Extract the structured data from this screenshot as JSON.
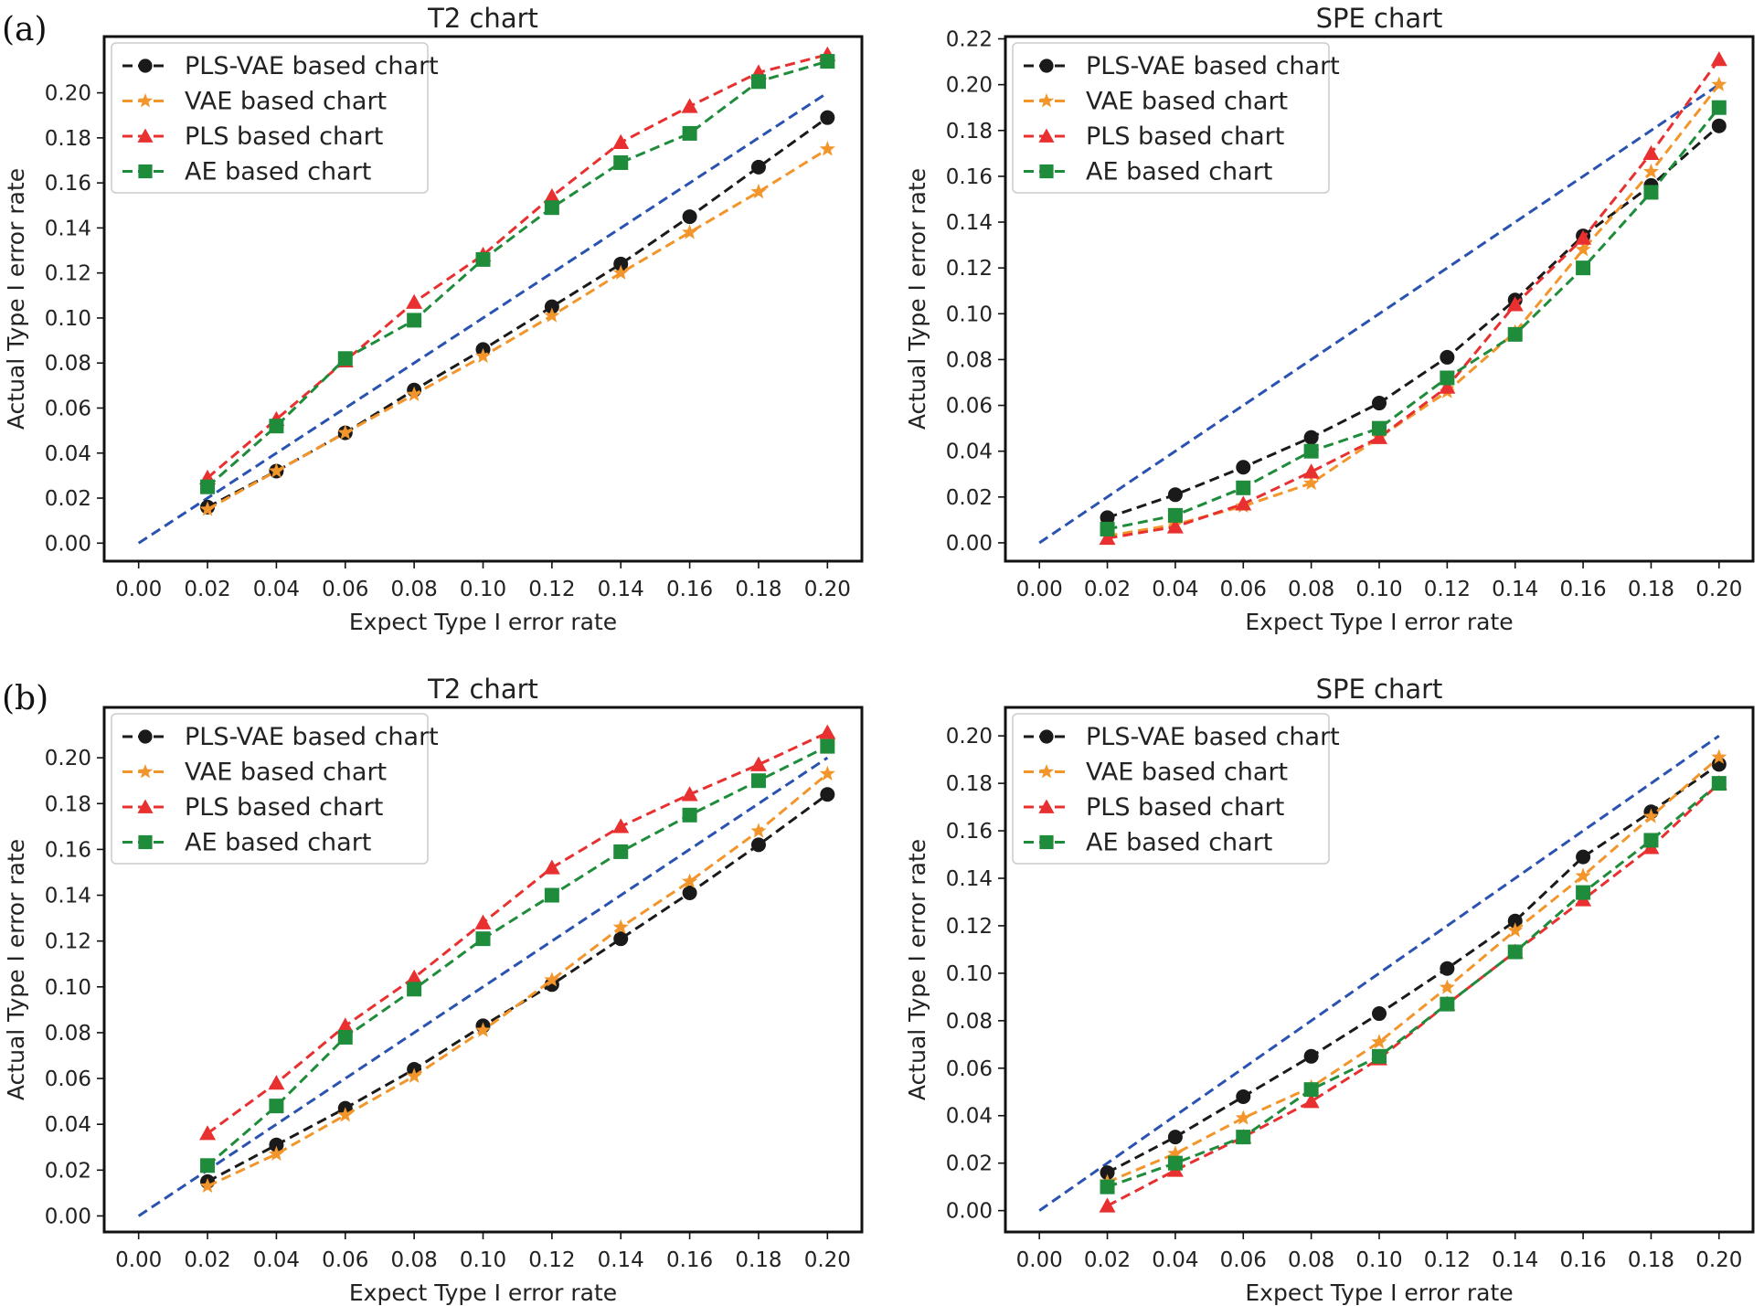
{
  "panels": [
    "(a)",
    "(b)"
  ],
  "colors": {
    "pls_vae": "#1a1a1a",
    "vae": "#f2952b",
    "pls": "#e83030",
    "ae": "#1e8c3a",
    "reference": "#2a52b0"
  },
  "chart_data": [
    {
      "id": "a-t2",
      "panel": "(a)",
      "type": "line",
      "title": "T2 chart",
      "xlabel": "Expect Type I error rate",
      "ylabel": "Actual Type I error rate",
      "xlim": [
        -0.01,
        0.21
      ],
      "ylim": [
        -0.008,
        0.225
      ],
      "xticks": [
        "0.00",
        "0.02",
        "0.04",
        "0.06",
        "0.08",
        "0.10",
        "0.12",
        "0.14",
        "0.16",
        "0.18",
        "0.20"
      ],
      "yticks": [
        "0.00",
        "0.02",
        "0.04",
        "0.06",
        "0.08",
        "0.10",
        "0.12",
        "0.14",
        "0.16",
        "0.18",
        "0.20"
      ],
      "legend_position": "top-left",
      "x": [
        0.02,
        0.04,
        0.06,
        0.08,
        0.1,
        0.12,
        0.14,
        0.16,
        0.18,
        0.2
      ],
      "series": [
        {
          "name": "PLS-VAE based chart",
          "marker": "circle",
          "color_key": "pls_vae",
          "values": [
            0.016,
            0.032,
            0.049,
            0.068,
            0.086,
            0.105,
            0.124,
            0.145,
            0.167,
            0.189
          ]
        },
        {
          "name": "VAE based chart",
          "marker": "star",
          "color_key": "vae",
          "values": [
            0.015,
            0.032,
            0.049,
            0.066,
            0.083,
            0.101,
            0.12,
            0.138,
            0.156,
            0.175
          ]
        },
        {
          "name": "PLS based chart",
          "marker": "triangle",
          "color_key": "pls",
          "values": [
            0.029,
            0.055,
            0.081,
            0.107,
            0.128,
            0.154,
            0.178,
            0.194,
            0.209,
            0.217
          ]
        },
        {
          "name": "AE based chart",
          "marker": "square",
          "color_key": "ae",
          "values": [
            0.025,
            0.052,
            0.082,
            0.099,
            0.126,
            0.149,
            0.169,
            0.182,
            0.205,
            0.214
          ]
        }
      ],
      "reference_line": [
        [
          0.0,
          0.0
        ],
        [
          0.2,
          0.2
        ]
      ]
    },
    {
      "id": "a-spe",
      "panel": "(a)",
      "type": "line",
      "title": "SPE chart",
      "xlabel": "Expect Type I error rate",
      "ylabel": "Actual Type I error rate",
      "xlim": [
        -0.01,
        0.21
      ],
      "ylim": [
        -0.008,
        0.221
      ],
      "xticks": [
        "0.00",
        "0.02",
        "0.04",
        "0.06",
        "0.08",
        "0.10",
        "0.12",
        "0.14",
        "0.16",
        "0.18",
        "0.20"
      ],
      "yticks": [
        "0.00",
        "0.02",
        "0.04",
        "0.06",
        "0.08",
        "0.10",
        "0.12",
        "0.14",
        "0.16",
        "0.18",
        "0.20",
        "0.22"
      ],
      "legend_position": "top-left",
      "x": [
        0.02,
        0.04,
        0.06,
        0.08,
        0.1,
        0.12,
        0.14,
        0.16,
        0.18,
        0.2
      ],
      "series": [
        {
          "name": "PLS-VAE based chart",
          "marker": "circle",
          "color_key": "pls_vae",
          "values": [
            0.011,
            0.021,
            0.033,
            0.046,
            0.061,
            0.081,
            0.106,
            0.134,
            0.156,
            0.182
          ]
        },
        {
          "name": "VAE based chart",
          "marker": "star",
          "color_key": "vae",
          "values": [
            0.003,
            0.008,
            0.016,
            0.026,
            0.046,
            0.066,
            0.092,
            0.128,
            0.162,
            0.2
          ]
        },
        {
          "name": "PLS based chart",
          "marker": "triangle",
          "color_key": "pls",
          "values": [
            0.002,
            0.007,
            0.017,
            0.031,
            0.046,
            0.068,
            0.104,
            0.133,
            0.17,
            0.211
          ]
        },
        {
          "name": "AE based chart",
          "marker": "square",
          "color_key": "ae",
          "values": [
            0.006,
            0.012,
            0.024,
            0.04,
            0.05,
            0.072,
            0.091,
            0.12,
            0.153,
            0.19
          ]
        }
      ],
      "reference_line": [
        [
          0.0,
          0.0
        ],
        [
          0.2,
          0.2
        ]
      ]
    },
    {
      "id": "b-t2",
      "panel": "(b)",
      "type": "line",
      "title": "T2 chart",
      "xlabel": "Expect Type I error rate",
      "ylabel": "Actual Type I error rate",
      "xlim": [
        -0.01,
        0.21
      ],
      "ylim": [
        -0.007,
        0.222
      ],
      "xticks": [
        "0.00",
        "0.02",
        "0.04",
        "0.06",
        "0.08",
        "0.10",
        "0.12",
        "0.14",
        "0.16",
        "0.18",
        "0.20"
      ],
      "yticks": [
        "0.00",
        "0.02",
        "0.04",
        "0.06",
        "0.08",
        "0.10",
        "0.12",
        "0.14",
        "0.16",
        "0.18",
        "0.20"
      ],
      "legend_position": "top-left",
      "x": [
        0.02,
        0.04,
        0.06,
        0.08,
        0.1,
        0.12,
        0.14,
        0.16,
        0.18,
        0.2
      ],
      "series": [
        {
          "name": "PLS-VAE based chart",
          "marker": "circle",
          "color_key": "pls_vae",
          "values": [
            0.015,
            0.031,
            0.047,
            0.064,
            0.083,
            0.101,
            0.121,
            0.141,
            0.162,
            0.184
          ]
        },
        {
          "name": "VAE based chart",
          "marker": "star",
          "color_key": "vae",
          "values": [
            0.013,
            0.027,
            0.044,
            0.061,
            0.081,
            0.103,
            0.126,
            0.146,
            0.168,
            0.193
          ]
        },
        {
          "name": "PLS based chart",
          "marker": "triangle",
          "color_key": "pls",
          "values": [
            0.036,
            0.058,
            0.083,
            0.104,
            0.128,
            0.152,
            0.17,
            0.184,
            0.197,
            0.211
          ]
        },
        {
          "name": "AE based chart",
          "marker": "square",
          "color_key": "ae",
          "values": [
            0.022,
            0.048,
            0.078,
            0.099,
            0.121,
            0.14,
            0.159,
            0.175,
            0.19,
            0.205
          ]
        }
      ],
      "reference_line": [
        [
          0.0,
          0.0
        ],
        [
          0.2,
          0.2
        ]
      ]
    },
    {
      "id": "b-spe",
      "panel": "(b)",
      "type": "line",
      "title": "SPE chart",
      "xlabel": "Expect Type I error rate",
      "ylabel": "Actual Type I error rate",
      "xlim": [
        -0.01,
        0.21
      ],
      "ylim": [
        -0.009,
        0.212
      ],
      "xticks": [
        "0.00",
        "0.02",
        "0.04",
        "0.06",
        "0.08",
        "0.10",
        "0.12",
        "0.14",
        "0.16",
        "0.18",
        "0.20"
      ],
      "yticks": [
        "0.00",
        "0.02",
        "0.04",
        "0.06",
        "0.08",
        "0.10",
        "0.12",
        "0.14",
        "0.16",
        "0.18",
        "0.20"
      ],
      "legend_position": "top-left",
      "x": [
        0.02,
        0.04,
        0.06,
        0.08,
        0.1,
        0.12,
        0.14,
        0.16,
        0.18,
        0.2
      ],
      "series": [
        {
          "name": "PLS-VAE based chart",
          "marker": "circle",
          "color_key": "pls_vae",
          "values": [
            0.016,
            0.031,
            0.048,
            0.065,
            0.083,
            0.102,
            0.122,
            0.149,
            0.168,
            0.188
          ]
        },
        {
          "name": "VAE based chart",
          "marker": "star",
          "color_key": "vae",
          "values": [
            0.012,
            0.024,
            0.039,
            0.052,
            0.071,
            0.094,
            0.118,
            0.141,
            0.166,
            0.191
          ]
        },
        {
          "name": "PLS based chart",
          "marker": "triangle",
          "color_key": "pls",
          "values": [
            0.002,
            0.017,
            0.031,
            0.046,
            0.064,
            0.087,
            0.109,
            0.131,
            0.153,
            0.18
          ]
        },
        {
          "name": "AE based chart",
          "marker": "square",
          "color_key": "ae",
          "values": [
            0.01,
            0.02,
            0.031,
            0.051,
            0.065,
            0.087,
            0.109,
            0.134,
            0.156,
            0.18
          ]
        }
      ],
      "reference_line": [
        [
          0.0,
          0.0
        ],
        [
          0.2,
          0.2
        ]
      ]
    }
  ]
}
